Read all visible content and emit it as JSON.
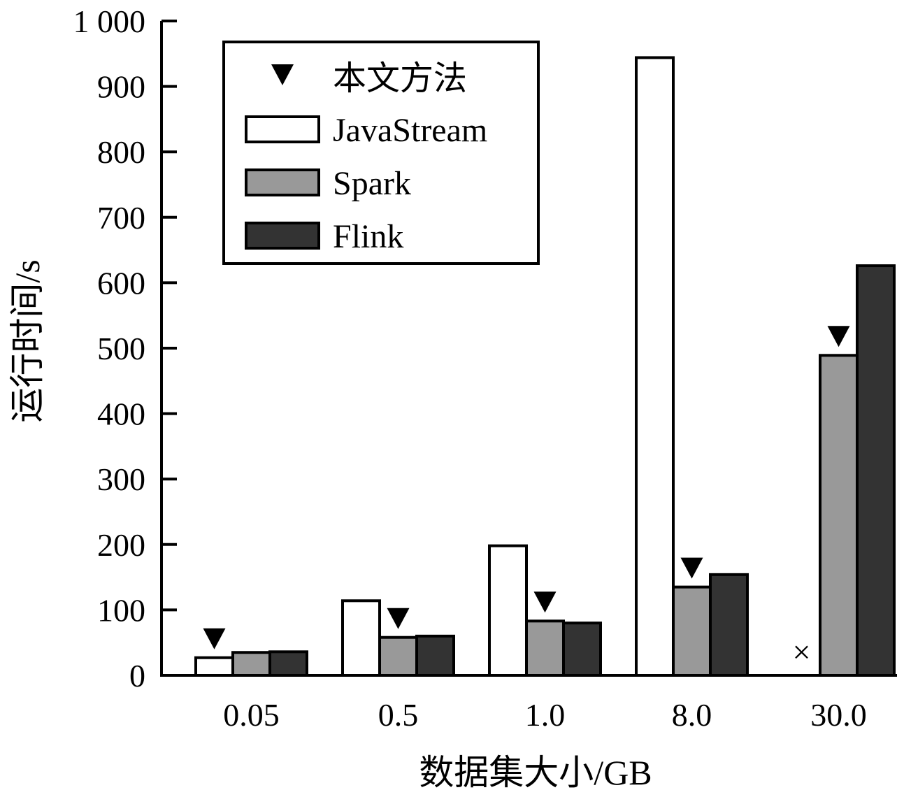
{
  "chart_data": {
    "type": "bar",
    "title": "",
    "xlabel": "数据集大小/GB",
    "ylabel": "运行时间/s",
    "ylim": [
      0,
      1000
    ],
    "yticks": [
      0,
      100,
      200,
      300,
      400,
      500,
      600,
      700,
      800,
      900,
      1000
    ],
    "ytick_labels": [
      "0",
      "100",
      "200",
      "300",
      "400",
      "500",
      "600",
      "700",
      "800",
      "900",
      "1 000"
    ],
    "categories": [
      "0.05",
      "0.5",
      "1.0",
      "8.0",
      "30.0"
    ],
    "series": [
      {
        "name": "JavaStream",
        "color": "#ffffff",
        "values": [
          27,
          114,
          198,
          944,
          null
        ]
      },
      {
        "name": "Spark",
        "color": "#999999",
        "values": [
          35,
          58,
          83,
          135,
          489
        ]
      },
      {
        "name": "Flink",
        "color": "#333333",
        "values": [
          36,
          60,
          80,
          154,
          626
        ]
      }
    ],
    "marker_legend": "本文方法",
    "best_method_series": [
      "JavaStream",
      "Spark",
      "Spark",
      "Spark",
      "Spark"
    ],
    "missing_marker": "×",
    "legend_position": "top-left",
    "grid": false
  }
}
